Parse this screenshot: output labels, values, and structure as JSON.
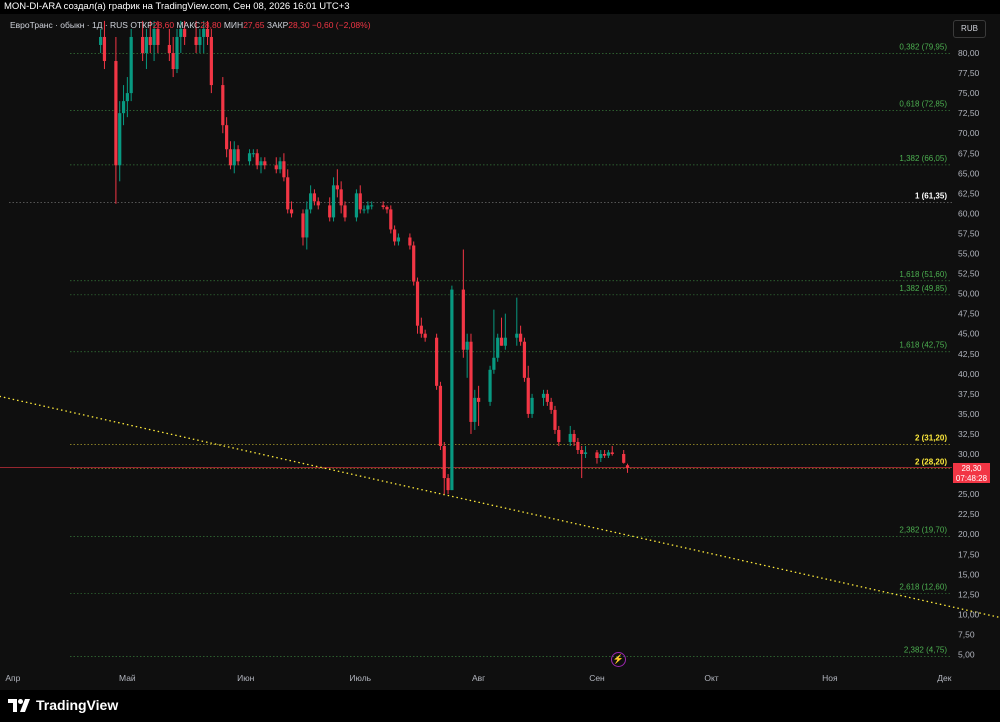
{
  "header": {
    "text": "MON-DI-ARA создал(а) график на TradingView.com, Сен 08, 2026 16:01 UTC+3"
  },
  "legend": {
    "title": "ЕвроТранс · обыкн · 1Д · RUS",
    "open_label": "ОТКР",
    "open": "28,60",
    "high_label": "МАКС",
    "high": "28,80",
    "low_label": "МИН",
    "low": "27,65",
    "close_label": "ЗАКР",
    "close": "28,30",
    "change": "−0,60 (−2,08%)"
  },
  "currency": "RUB",
  "price_box": {
    "price": "28,30",
    "countdown": "07:48:28"
  },
  "logo": {
    "text": "TradingView"
  },
  "colors": {
    "up": "#089981",
    "down": "#f23645",
    "fib_green": "#4caf50",
    "fib_yellow": "#ffeb3b",
    "fib_white": "#ffffff",
    "trend": "#ffeb3b"
  },
  "chart_data": {
    "type": "candlestick",
    "symbol": "ЕвроТранс",
    "currency": "RUB",
    "x_ticks": [
      "Апр",
      "Май",
      "Июн",
      "Июль",
      "Авг",
      "Сен",
      "Окт",
      "Ноя",
      "Дек"
    ],
    "y_ticks": [
      "5,00",
      "7,50",
      "10,00",
      "12,50",
      "15,00",
      "17,50",
      "20,00",
      "22,50",
      "25,00",
      "27,50",
      "30,00",
      "32,50",
      "35,00",
      "37,50",
      "40,00",
      "42,50",
      "45,00",
      "47,50",
      "50,00",
      "52,50",
      "55,00",
      "57,50",
      "60,00",
      "62,50",
      "65,00",
      "67,50",
      "70,00",
      "72,50",
      "75,00",
      "77,50",
      "80,00"
    ],
    "ylim": [
      4,
      83
    ],
    "fib_levels": [
      {
        "label": "0,382 (79,95)",
        "value": 79.95,
        "color": "green"
      },
      {
        "label": "0,618 (72,85)",
        "value": 72.85,
        "color": "green"
      },
      {
        "label": "1,382 (66,05)",
        "value": 66.05,
        "color": "green"
      },
      {
        "label": "1 (61,35)",
        "value": 61.35,
        "color": "white"
      },
      {
        "label": "1,618 (51,60)",
        "value": 51.6,
        "color": "green"
      },
      {
        "label": "1,382 (49,85)",
        "value": 49.85,
        "color": "green"
      },
      {
        "label": "1,618 (42,75)",
        "value": 42.75,
        "color": "green"
      },
      {
        "label": "2 (31,20)",
        "value": 31.2,
        "color": "yellow"
      },
      {
        "label": "2 (28,20)",
        "value": 28.2,
        "color": "yellow"
      },
      {
        "label": "2,382 (19,70)",
        "value": 19.7,
        "color": "green"
      },
      {
        "label": "2,618 (12,60)",
        "value": 12.6,
        "color": "green"
      },
      {
        "label": "2,382 (4,75)",
        "value": 4.75,
        "color": "green"
      }
    ],
    "last_price": 28.3,
    "trendline": [
      [
        "Mar 23",
        38.4
      ],
      [
        "Dec 28",
        8.2
      ]
    ],
    "candles": [
      [
        "Apr 23",
        81,
        83,
        80,
        82
      ],
      [
        "Apr 24",
        82,
        84,
        78,
        79
      ],
      [
        "Apr 27",
        79,
        82,
        61.2,
        66
      ],
      [
        "Apr 28",
        66,
        74,
        64,
        72.5
      ],
      [
        "Apr 29",
        72.5,
        76,
        71,
        74
      ],
      [
        "Apr 30",
        74,
        77,
        72,
        75
      ],
      [
        "May 1",
        75,
        83,
        74,
        82
      ],
      [
        "May 4",
        82,
        84,
        79,
        80
      ],
      [
        "May 5",
        80,
        83,
        78,
        82
      ],
      [
        "May 6",
        82,
        84,
        80,
        81
      ],
      [
        "May 7",
        81,
        84,
        79,
        83
      ],
      [
        "May 8",
        83,
        84,
        80,
        81
      ],
      [
        "May 11",
        81,
        83,
        79,
        80
      ],
      [
        "May 12",
        80,
        82,
        77,
        78
      ],
      [
        "May 13",
        78,
        83,
        77.5,
        82
      ],
      [
        "May 14",
        82,
        84,
        80,
        83
      ],
      [
        "May 15",
        83,
        84,
        81,
        82
      ],
      [
        "May 18",
        82,
        84,
        80,
        81
      ],
      [
        "May 19",
        81,
        83,
        80,
        82
      ],
      [
        "May 20",
        82,
        84,
        80,
        83
      ],
      [
        "May 21",
        83,
        84,
        81,
        82
      ],
      [
        "May 22",
        82,
        83,
        75,
        76
      ],
      [
        "May 25",
        76,
        77,
        70,
        71
      ],
      [
        "May 26",
        71,
        72,
        67,
        68
      ],
      [
        "May 27",
        68,
        69,
        65.5,
        66
      ],
      [
        "May 28",
        66,
        69,
        65,
        68
      ],
      [
        "May 29",
        68,
        68.5,
        66,
        66.5
      ],
      [
        "Jun 1",
        66.5,
        68,
        66,
        67.5
      ],
      [
        "Jun 2",
        67.5,
        68,
        67,
        67.5
      ],
      [
        "Jun 3",
        67.5,
        68,
        65.5,
        66
      ],
      [
        "Jun 4",
        66,
        67,
        65,
        66.5
      ],
      [
        "Jun 5",
        66.5,
        67,
        65.5,
        66
      ],
      [
        "Jun 8",
        66,
        67,
        65,
        65.5
      ],
      [
        "Jun 9",
        65.5,
        67,
        65,
        66.5
      ],
      [
        "Jun 10",
        66.5,
        67.5,
        64,
        64.5
      ],
      [
        "Jun 11",
        64.5,
        65.5,
        60,
        60.5
      ],
      [
        "Jun 12",
        60.5,
        61.5,
        59.5,
        60
      ],
      [
        "Jun 15",
        60,
        60.5,
        56,
        57
      ],
      [
        "Jun 16",
        57,
        61.5,
        55.5,
        60.5
      ],
      [
        "Jun 17",
        60.5,
        63.5,
        60,
        62.5
      ],
      [
        "Jun 18",
        62.5,
        63,
        61,
        61.5
      ],
      [
        "Jun 19",
        61.5,
        62,
        60.5,
        61
      ],
      [
        "Jun 22",
        61,
        62,
        59,
        59.5
      ],
      [
        "Jun 23",
        59.5,
        64.5,
        59,
        63.5
      ],
      [
        "Jun 24",
        63.5,
        65.5,
        62,
        63
      ],
      [
        "Jun 25",
        63,
        64,
        60,
        61
      ],
      [
        "Jun 26",
        61,
        61.5,
        59,
        59.5
      ],
      [
        "Jun 29",
        59.5,
        63,
        59,
        62.5
      ],
      [
        "Jun 30",
        62.5,
        63.5,
        60,
        60.5
      ],
      [
        "Jul 1",
        60.5,
        61,
        60,
        60.5
      ],
      [
        "Jul 2",
        60.5,
        61.5,
        60,
        61
      ],
      [
        "Jul 3",
        61,
        61.5,
        60.5,
        61
      ],
      [
        "Jul 6",
        61,
        61.5,
        60.5,
        60.8
      ],
      [
        "Jul 7",
        60.8,
        61,
        60,
        60.5
      ],
      [
        "Jul 8",
        60.5,
        61,
        57.5,
        58
      ],
      [
        "Jul 9",
        58,
        58.5,
        56,
        56.5
      ],
      [
        "Jul 10",
        56.5,
        57.5,
        56,
        57
      ],
      [
        "Jul 13",
        57,
        57.5,
        55.5,
        56
      ],
      [
        "Jul 14",
        56,
        56.5,
        51,
        51.5
      ],
      [
        "Jul 15",
        51.5,
        52,
        45,
        46
      ],
      [
        "Jul 16",
        46,
        47,
        44.5,
        45
      ],
      [
        "Jul 17",
        45,
        45.5,
        44,
        44.5
      ],
      [
        "Jul 20",
        44.5,
        45,
        38,
        38.5
      ],
      [
        "Jul 21",
        38.5,
        39,
        30.5,
        31
      ],
      [
        "Jul 22",
        31,
        31.5,
        25,
        27
      ],
      [
        "Jul 23",
        27,
        27.5,
        25,
        25.5
      ],
      [
        "Jul 24",
        25.5,
        51,
        25.5,
        50.5
      ],
      [
        "Jul 27",
        50.5,
        55.5,
        42,
        43
      ],
      [
        "Jul 28",
        43,
        45,
        39.5,
        44
      ],
      [
        "Jul 29",
        44,
        45,
        32.5,
        34
      ],
      [
        "Jul 30",
        34,
        38,
        33,
        37
      ],
      [
        "Jul 31",
        37,
        38.5,
        33.5,
        36.5
      ],
      [
        "Aug 3",
        36.5,
        41,
        36,
        40.5
      ],
      [
        "Aug 4",
        40.5,
        48,
        40,
        42
      ],
      [
        "Aug 5",
        42,
        45,
        41.5,
        44.5
      ],
      [
        "Aug 6",
        44.5,
        47,
        43.5,
        43.5
      ],
      [
        "Aug 7",
        43.5,
        47.5,
        43,
        44.5
      ],
      [
        "Aug 10",
        44.5,
        49.5,
        43.5,
        45
      ],
      [
        "Aug 11",
        45,
        46,
        43.5,
        44
      ],
      [
        "Aug 12",
        44,
        44.5,
        39,
        39.5
      ],
      [
        "Aug 13",
        39.5,
        41,
        34.5,
        35
      ],
      [
        "Aug 14",
        35,
        37.5,
        34.5,
        37
      ],
      [
        "Aug 17",
        37,
        38,
        36,
        37.5
      ],
      [
        "Aug 18",
        37.5,
        38,
        36,
        36.5
      ],
      [
        "Aug 19",
        36.5,
        37,
        35,
        35.5
      ],
      [
        "Aug 20",
        35.5,
        36,
        32.5,
        33
      ],
      [
        "Aug 21",
        33,
        33.5,
        31,
        31.5
      ],
      [
        "Aug 24",
        31.5,
        33.5,
        31,
        32.5
      ],
      [
        "Aug 25",
        32.5,
        33,
        31,
        31.5
      ],
      [
        "Aug 26",
        31.5,
        32,
        30,
        30.5
      ],
      [
        "Aug 27",
        30.5,
        31,
        27,
        30
      ],
      [
        "Aug 28",
        30,
        31,
        29.5,
        30.2
      ],
      [
        "Aug 31",
        30.2,
        30.5,
        28.8,
        29.5
      ],
      [
        "Sep 1",
        29.5,
        30.5,
        29,
        30
      ],
      [
        "Sep 2",
        30,
        30.5,
        29.5,
        29.8
      ],
      [
        "Sep 3",
        29.8,
        30.5,
        29.5,
        30.2
      ],
      [
        "Sep 4",
        30.2,
        31,
        29.8,
        30
      ],
      [
        "Sep 7",
        30,
        30.5,
        28.8,
        28.9
      ],
      [
        "Sep 8",
        28.6,
        28.8,
        27.65,
        28.3
      ]
    ]
  }
}
